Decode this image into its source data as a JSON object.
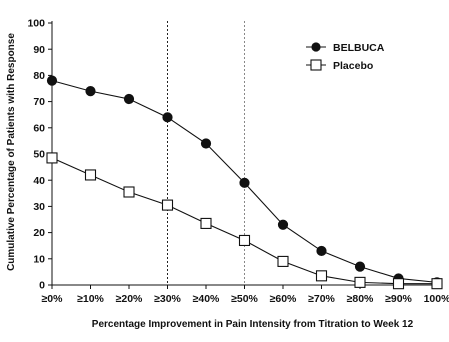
{
  "chart_data": {
    "type": "line",
    "title": "",
    "xlabel": "Percentage Improvement in Pain Intensity from Titration to Week 12",
    "ylabel": "Cumulative Percentage of Patients with Response",
    "categories": [
      "≥0%",
      "≥10%",
      "≥20%",
      "≥30%",
      "≥40%",
      "≥50%",
      "≥60%",
      "≥70%",
      "≥80%",
      "≥90%",
      "100%"
    ],
    "ylim": [
      0,
      100
    ],
    "yticks": [
      0,
      10,
      20,
      30,
      40,
      50,
      60,
      70,
      80,
      90,
      100
    ],
    "grid": false,
    "legend_position": "top-right",
    "reference_lines": [
      {
        "at_category": "≥30%",
        "style": "dotted",
        "color": "#222222"
      },
      {
        "at_category": "≥50%",
        "style": "dotted",
        "color": "#888888"
      }
    ],
    "series": [
      {
        "name": "BELBUCA",
        "marker": "filled-circle",
        "color": "#111111",
        "values": [
          78,
          74,
          71,
          64,
          54,
          39,
          23,
          13,
          7,
          2.5,
          1
        ]
      },
      {
        "name": "Placebo",
        "marker": "open-square",
        "color": "#111111",
        "values": [
          48.5,
          42,
          35.5,
          30.5,
          23.5,
          17,
          9,
          3.5,
          1,
          0.5,
          0.5
        ]
      }
    ]
  }
}
